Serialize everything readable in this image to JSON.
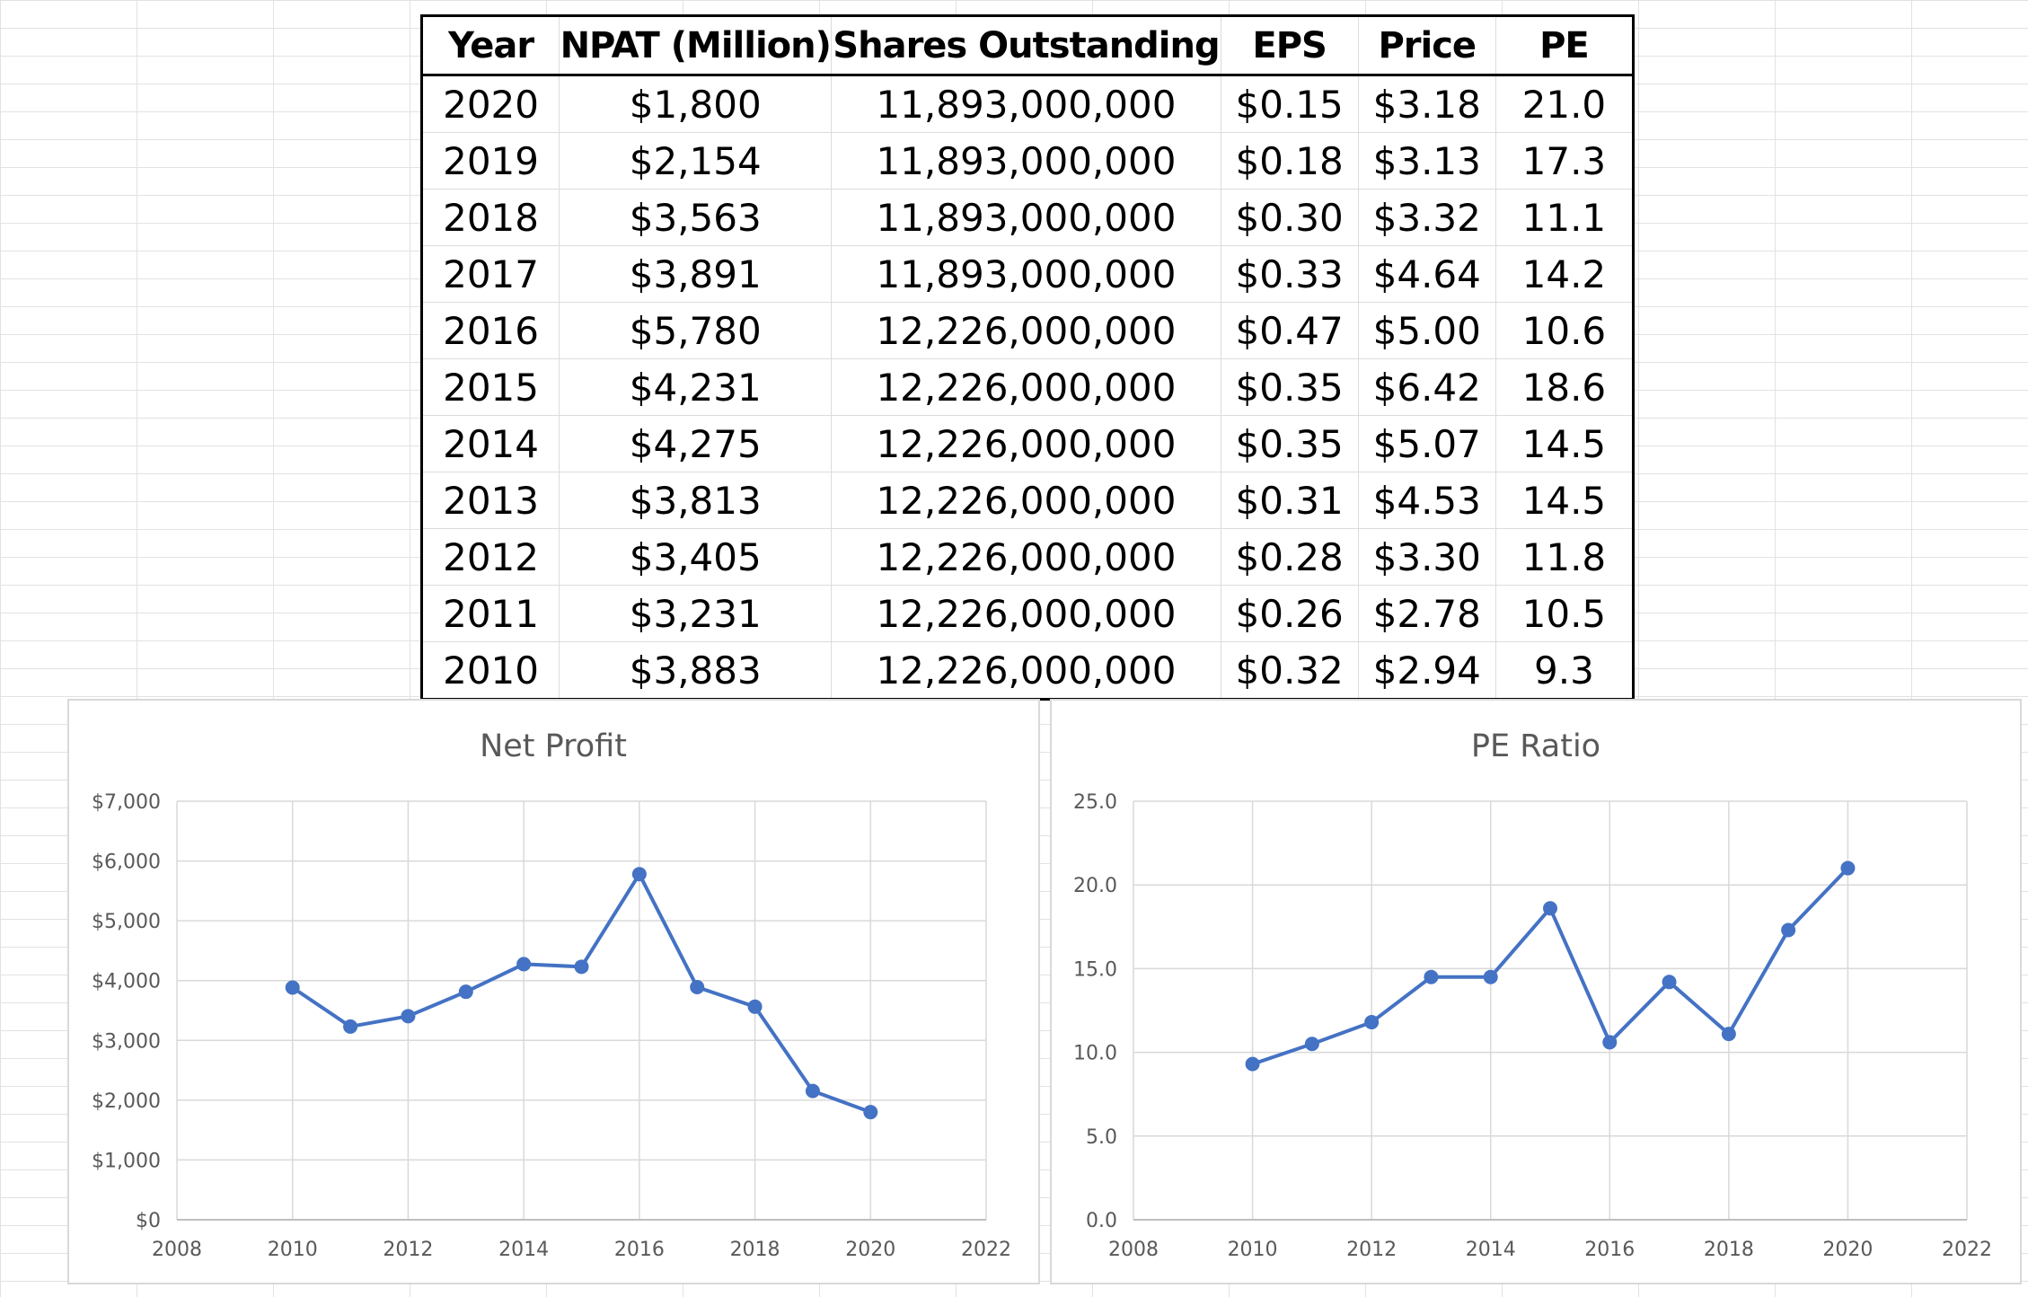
{
  "table": {
    "headers": [
      "Year",
      "NPAT (Million)",
      "Shares Outstanding",
      "EPS",
      "Price",
      "PE"
    ],
    "rows": [
      [
        "2020",
        "$1,800",
        "11,893,000,000",
        "$0.15",
        "$3.18",
        "21.0"
      ],
      [
        "2019",
        "$2,154",
        "11,893,000,000",
        "$0.18",
        "$3.13",
        "17.3"
      ],
      [
        "2018",
        "$3,563",
        "11,893,000,000",
        "$0.30",
        "$3.32",
        "11.1"
      ],
      [
        "2017",
        "$3,891",
        "11,893,000,000",
        "$0.33",
        "$4.64",
        "14.2"
      ],
      [
        "2016",
        "$5,780",
        "12,226,000,000",
        "$0.47",
        "$5.00",
        "10.6"
      ],
      [
        "2015",
        "$4,231",
        "12,226,000,000",
        "$0.35",
        "$6.42",
        "18.6"
      ],
      [
        "2014",
        "$4,275",
        "12,226,000,000",
        "$0.35",
        "$5.07",
        "14.5"
      ],
      [
        "2013",
        "$3,813",
        "12,226,000,000",
        "$0.31",
        "$4.53",
        "14.5"
      ],
      [
        "2012",
        "$3,405",
        "12,226,000,000",
        "$0.28",
        "$3.30",
        "11.8"
      ],
      [
        "2011",
        "$3,231",
        "12,226,000,000",
        "$0.26",
        "$2.78",
        "10.5"
      ],
      [
        "2010",
        "$3,883",
        "12,226,000,000",
        "$0.32",
        "$2.94",
        "9.3"
      ]
    ]
  },
  "chart_data": [
    {
      "type": "scatter",
      "title": "Net Profit",
      "x": [
        2010,
        2011,
        2012,
        2013,
        2014,
        2015,
        2016,
        2017,
        2018,
        2019,
        2020
      ],
      "y": [
        3883,
        3231,
        3405,
        3813,
        4275,
        4231,
        5780,
        3891,
        3563,
        2154,
        1800
      ],
      "xlim": [
        2008,
        2022
      ],
      "ylim": [
        0,
        7000
      ],
      "x_ticks": [
        2008,
        2010,
        2012,
        2014,
        2016,
        2018,
        2020,
        2022
      ],
      "y_ticks": [
        0,
        1000,
        2000,
        3000,
        4000,
        5000,
        6000,
        7000
      ],
      "x_tick_labels": [
        "2008",
        "2010",
        "2012",
        "2014",
        "2016",
        "2018",
        "2020",
        "2022"
      ],
      "y_tick_labels": [
        "$0",
        "$1,000",
        "$2,000",
        "$3,000",
        "$4,000",
        "$5,000",
        "$6,000",
        "$7,000"
      ],
      "grid": true,
      "lines_and_markers": true,
      "color": "#4472c4"
    },
    {
      "type": "scatter",
      "title": "PE Ratio",
      "x": [
        2010,
        2011,
        2012,
        2013,
        2014,
        2015,
        2016,
        2017,
        2018,
        2019,
        2020
      ],
      "y": [
        9.3,
        10.5,
        11.8,
        14.5,
        14.5,
        18.6,
        10.6,
        14.2,
        11.1,
        17.3,
        21.0
      ],
      "xlim": [
        2008,
        2022
      ],
      "ylim": [
        0,
        25
      ],
      "x_ticks": [
        2008,
        2010,
        2012,
        2014,
        2016,
        2018,
        2020,
        2022
      ],
      "y_ticks": [
        0,
        5,
        10,
        15,
        20,
        25
      ],
      "x_tick_labels": [
        "2008",
        "2010",
        "2012",
        "2014",
        "2016",
        "2018",
        "2020",
        "2022"
      ],
      "y_tick_labels": [
        "0.0",
        "5.0",
        "10.0",
        "15.0",
        "20.0",
        "25.0"
      ],
      "grid": true,
      "lines_and_markers": true,
      "color": "#4472c4"
    }
  ]
}
